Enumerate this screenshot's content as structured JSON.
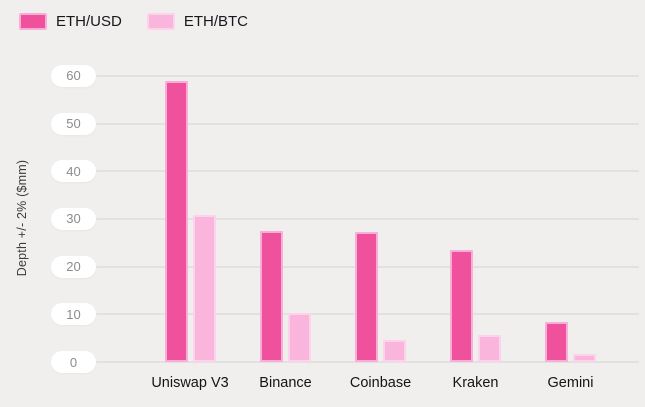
{
  "chart_data": {
    "type": "bar",
    "title": "",
    "categories": [
      "Uniswap V3",
      "Binance",
      "Coinbase",
      "Kraken",
      "Gemini"
    ],
    "series": [
      {
        "name": "ETH/USD",
        "color": "#f0519d",
        "border_color": "#f9aed7",
        "values": [
          59,
          27.4,
          27.2,
          23.5,
          8.3
        ]
      },
      {
        "name": "ETH/BTC",
        "color": "#f9b5db",
        "border_color": "#fdd3eb",
        "values": [
          30.8,
          10.3,
          4.6,
          5.6,
          1.6
        ]
      }
    ],
    "xlabel": "",
    "ylabel": "Depth +/- 2% ($mm)",
    "yticks": [
      0,
      10,
      20,
      30,
      40,
      50,
      60
    ],
    "ylim": [
      0,
      60
    ],
    "grid": true,
    "legend_position": "top-left",
    "colors": {
      "background": "#f0efee",
      "gridline": "#e3e1df",
      "tick_pill_bg": "#ffffff",
      "tick_text": "#8c8c8c",
      "axis_title_text": "#3d3d3d",
      "category_text": "#141414",
      "legend_text": "#17171c"
    }
  }
}
